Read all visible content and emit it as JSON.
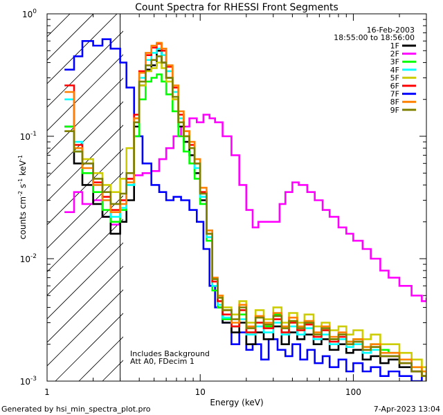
{
  "chart_data": {
    "type": "line",
    "title": "Count Spectra for RHESSI Front Segments",
    "xlabel": "Energy (keV)",
    "ylabel_parts": {
      "base": "counts cm",
      "exp1": "-2",
      "mid1": " s",
      "exp2": "-1",
      "mid2": " keV",
      "exp3": "-1"
    },
    "x_scale": "log",
    "y_scale": "log",
    "xlim": [
      1,
      300
    ],
    "ylim": [
      0.001,
      1
    ],
    "x_ticks": [
      {
        "value": 1,
        "label": "1"
      },
      {
        "value": 10,
        "label": "10"
      },
      {
        "value": 100,
        "label": "100"
      }
    ],
    "y_ticks": [
      {
        "value": 0.001,
        "base": "10",
        "exp": "-3"
      },
      {
        "value": 0.01,
        "base": "10",
        "exp": "-2"
      },
      {
        "value": 0.1,
        "base": "10",
        "exp": "-1"
      },
      {
        "value": 1,
        "base": "10",
        "exp": "0"
      }
    ],
    "attenuator_shade_upper_kev": 3,
    "annotations": {
      "date": "16-Feb-2003",
      "time_range": "18:55:00 to 18:56:00",
      "background_note": "Includes Background",
      "att_note": "Att A0, FDecim 1"
    },
    "footer_left": "Generated by hsi_min_spectra_plot.pro",
    "footer_right": "7-Apr-2023 13:04",
    "legend_position": "top-right",
    "legend": [
      {
        "name": "1F",
        "color": "#000000"
      },
      {
        "name": "2F",
        "color": "#ff00ff"
      },
      {
        "name": "3F",
        "color": "#00ff00"
      },
      {
        "name": "4F",
        "color": "#00ffff"
      },
      {
        "name": "5F",
        "color": "#cccc00"
      },
      {
        "name": "6F",
        "color": "#ff0000"
      },
      {
        "name": "7F",
        "color": "#0000ff"
      },
      {
        "name": "8F",
        "color": "#ff8000"
      },
      {
        "name": "9F",
        "color": "#808000"
      }
    ],
    "series": [
      {
        "name": "2F",
        "color": "#ff00ff",
        "x": [
          1.3,
          1.5,
          1.7,
          2.0,
          2.3,
          2.6,
          3.0,
          3.3,
          3.7,
          4.2,
          4.8,
          5.4,
          6.0,
          6.7,
          7.5,
          8.5,
          9.5,
          10.5,
          11.5,
          12.5,
          14,
          16,
          18,
          20,
          22,
          24,
          27,
          30,
          33,
          36,
          40,
          44,
          50,
          56,
          63,
          70,
          80,
          90,
          100,
          115,
          130,
          150,
          170,
          200,
          240,
          280,
          300
        ],
        "y": [
          0.024,
          0.035,
          0.028,
          0.03,
          0.022,
          0.019,
          0.03,
          0.045,
          0.048,
          0.05,
          0.052,
          0.065,
          0.08,
          0.1,
          0.12,
          0.14,
          0.13,
          0.15,
          0.14,
          0.13,
          0.1,
          0.07,
          0.04,
          0.025,
          0.018,
          0.02,
          0.02,
          0.02,
          0.028,
          0.035,
          0.042,
          0.04,
          0.035,
          0.03,
          0.025,
          0.022,
          0.018,
          0.016,
          0.014,
          0.012,
          0.01,
          0.008,
          0.007,
          0.006,
          0.005,
          0.0045,
          0.0048
        ]
      },
      {
        "name": "7F",
        "color": "#0000ff",
        "x": [
          1.3,
          1.5,
          1.7,
          2.0,
          2.3,
          2.6,
          3.0,
          3.3,
          3.7,
          4.2,
          4.8,
          5.4,
          6.0,
          6.7,
          7.5,
          8.5,
          9.5,
          10.5,
          11.5,
          12.5,
          14,
          16,
          18,
          20,
          22,
          25,
          28,
          32,
          36,
          40,
          45,
          50,
          56,
          63,
          70,
          80,
          90,
          100,
          115,
          130,
          150,
          170,
          200,
          240,
          280,
          300
        ],
        "y": [
          0.35,
          0.45,
          0.6,
          0.55,
          0.62,
          0.52,
          0.4,
          0.25,
          0.1,
          0.06,
          0.04,
          0.035,
          0.03,
          0.032,
          0.03,
          0.025,
          0.02,
          0.012,
          0.006,
          0.004,
          0.003,
          0.002,
          0.0025,
          0.0018,
          0.002,
          0.0015,
          0.0022,
          0.0018,
          0.0016,
          0.002,
          0.0015,
          0.0018,
          0.0014,
          0.0016,
          0.0013,
          0.0015,
          0.0012,
          0.0014,
          0.0012,
          0.0013,
          0.0011,
          0.0012,
          0.0011,
          0.001,
          0.0011,
          0.001
        ]
      },
      {
        "name": "1F",
        "color": "#000000",
        "x": [
          1.3,
          1.5,
          1.7,
          2.0,
          2.3,
          2.6,
          3.0,
          3.3,
          3.7,
          4.0,
          4.4,
          4.8,
          5.2,
          5.6,
          6.0,
          6.6,
          7.2,
          7.8,
          8.5,
          9.2,
          10,
          11,
          12,
          13,
          14,
          16,
          18,
          20,
          23,
          26,
          30,
          34,
          38,
          43,
          48,
          55,
          62,
          70,
          80,
          90,
          100,
          115,
          130,
          150,
          170,
          200,
          240,
          280,
          300
        ],
        "y": [
          0.12,
          0.06,
          0.04,
          0.028,
          0.022,
          0.016,
          0.02,
          0.03,
          0.12,
          0.26,
          0.35,
          0.38,
          0.5,
          0.4,
          0.3,
          0.2,
          0.12,
          0.09,
          0.07,
          0.05,
          0.03,
          0.015,
          0.006,
          0.004,
          0.003,
          0.0025,
          0.003,
          0.002,
          0.0025,
          0.0022,
          0.0028,
          0.002,
          0.0025,
          0.0022,
          0.0024,
          0.002,
          0.0022,
          0.0018,
          0.002,
          0.0017,
          0.0018,
          0.0015,
          0.0016,
          0.0014,
          0.0015,
          0.0013,
          0.0012,
          0.0011,
          0.001
        ]
      },
      {
        "name": "3F",
        "color": "#00ff00",
        "x": [
          1.3,
          1.5,
          1.7,
          2.0,
          2.3,
          2.6,
          3.0,
          3.3,
          3.7,
          4.0,
          4.4,
          4.8,
          5.2,
          5.6,
          6.0,
          6.6,
          7.2,
          7.8,
          8.5,
          9.2,
          10,
          11,
          12,
          13,
          14,
          16,
          18,
          20,
          23,
          26,
          30,
          34,
          38,
          43,
          48,
          55,
          62,
          70,
          80,
          90,
          100,
          115,
          130,
          150,
          170,
          200,
          240,
          280,
          300
        ],
        "y": [
          0.12,
          0.075,
          0.05,
          0.035,
          0.025,
          0.02,
          0.025,
          0.04,
          0.1,
          0.2,
          0.28,
          0.3,
          0.32,
          0.28,
          0.22,
          0.16,
          0.1,
          0.075,
          0.06,
          0.045,
          0.028,
          0.014,
          0.0055,
          0.004,
          0.0032,
          0.0028,
          0.0035,
          0.0025,
          0.003,
          0.0028,
          0.0035,
          0.0025,
          0.003,
          0.0026,
          0.003,
          0.0024,
          0.0026,
          0.0022,
          0.0024,
          0.0021,
          0.0022,
          0.0019,
          0.002,
          0.0018,
          0.0017,
          0.0015,
          0.0013,
          0.0012,
          0.0011
        ]
      },
      {
        "name": "4F",
        "color": "#00ffff",
        "x": [
          1.3,
          1.5,
          1.7,
          2.0,
          2.3,
          2.6,
          3.0,
          3.3,
          3.7,
          4.0,
          4.4,
          4.8,
          5.2,
          5.6,
          6.0,
          6.6,
          7.2,
          7.8,
          8.5,
          9.2,
          10,
          11,
          12,
          13,
          14,
          16,
          18,
          20,
          23,
          26,
          30,
          34,
          38,
          43,
          48,
          55,
          62,
          70,
          80,
          90,
          100,
          115,
          130,
          150,
          170,
          200,
          240,
          280,
          300
        ],
        "y": [
          0.2,
          0.09,
          0.06,
          0.04,
          0.03,
          0.022,
          0.026,
          0.04,
          0.13,
          0.3,
          0.42,
          0.48,
          0.52,
          0.46,
          0.34,
          0.23,
          0.14,
          0.1,
          0.08,
          0.055,
          0.032,
          0.015,
          0.006,
          0.0042,
          0.0033,
          0.0028,
          0.0032,
          0.0024,
          0.0028,
          0.0025,
          0.003,
          0.0024,
          0.0028,
          0.0024,
          0.0027,
          0.0022,
          0.0024,
          0.002,
          0.0022,
          0.0019,
          0.002,
          0.0017,
          0.0018,
          0.0016,
          0.0016,
          0.0014,
          0.0012,
          0.0011,
          0.001
        ]
      },
      {
        "name": "5F",
        "color": "#cccc00",
        "x": [
          1.3,
          1.5,
          1.7,
          2.0,
          2.3,
          2.6,
          3.0,
          3.3,
          3.7,
          4.0,
          4.4,
          4.8,
          5.2,
          5.6,
          6.0,
          6.6,
          7.2,
          7.8,
          8.5,
          9.2,
          10,
          11,
          12,
          13,
          14,
          16,
          18,
          20,
          23,
          26,
          30,
          34,
          38,
          43,
          48,
          55,
          62,
          70,
          80,
          90,
          100,
          115,
          130,
          150,
          170,
          200,
          240,
          280,
          300
        ],
        "y": [
          0.11,
          0.08,
          0.065,
          0.05,
          0.04,
          0.035,
          0.045,
          0.08,
          0.14,
          0.26,
          0.34,
          0.36,
          0.4,
          0.36,
          0.28,
          0.2,
          0.13,
          0.1,
          0.08,
          0.06,
          0.035,
          0.017,
          0.007,
          0.005,
          0.004,
          0.0035,
          0.0045,
          0.003,
          0.0038,
          0.0032,
          0.004,
          0.003,
          0.0036,
          0.003,
          0.0035,
          0.0028,
          0.003,
          0.0026,
          0.0028,
          0.0024,
          0.0026,
          0.0022,
          0.0024,
          0.002,
          0.002,
          0.0017,
          0.0015,
          0.0013,
          0.0012
        ]
      },
      {
        "name": "6F",
        "color": "#ff0000",
        "x": [
          1.3,
          1.5,
          1.7,
          2.0,
          2.3,
          2.6,
          3.0,
          3.3,
          3.7,
          4.0,
          4.4,
          4.8,
          5.2,
          5.6,
          6.0,
          6.6,
          7.2,
          7.8,
          8.5,
          9.2,
          10,
          11,
          12,
          13,
          14,
          16,
          18,
          20,
          23,
          26,
          30,
          34,
          38,
          43,
          48,
          55,
          62,
          70,
          80,
          90,
          100,
          115,
          130,
          150,
          170,
          200,
          240,
          280,
          300
        ],
        "y": [
          0.26,
          0.085,
          0.06,
          0.042,
          0.032,
          0.025,
          0.03,
          0.045,
          0.15,
          0.34,
          0.46,
          0.53,
          0.57,
          0.5,
          0.37,
          0.25,
          0.15,
          0.11,
          0.085,
          0.06,
          0.035,
          0.016,
          0.0065,
          0.0045,
          0.0035,
          0.0028,
          0.0038,
          0.0025,
          0.003,
          0.0027,
          0.0032,
          0.0025,
          0.003,
          0.0026,
          0.0029,
          0.0023,
          0.0026,
          0.0021,
          0.0023,
          0.002,
          0.0021,
          0.0018,
          0.0019,
          0.0016,
          0.0016,
          0.0014,
          0.0012,
          0.0011,
          0.001
        ]
      },
      {
        "name": "8F",
        "color": "#ff8000",
        "x": [
          1.3,
          1.5,
          1.7,
          2.0,
          2.3,
          2.6,
          3.0,
          3.3,
          3.7,
          4.0,
          4.4,
          4.8,
          5.2,
          5.6,
          6.0,
          6.6,
          7.2,
          7.8,
          8.5,
          9.2,
          10,
          11,
          12,
          13,
          14,
          16,
          18,
          20,
          23,
          26,
          30,
          34,
          38,
          43,
          48,
          55,
          62,
          70,
          80,
          90,
          100,
          115,
          130,
          150,
          170,
          200,
          240,
          280,
          300
        ],
        "y": [
          0.23,
          0.08,
          0.055,
          0.04,
          0.03,
          0.024,
          0.028,
          0.042,
          0.14,
          0.33,
          0.48,
          0.55,
          0.58,
          0.52,
          0.38,
          0.26,
          0.16,
          0.11,
          0.09,
          0.065,
          0.038,
          0.017,
          0.007,
          0.005,
          0.0038,
          0.003,
          0.0042,
          0.0028,
          0.0034,
          0.003,
          0.0036,
          0.0028,
          0.0033,
          0.0028,
          0.0031,
          0.0025,
          0.0028,
          0.0023,
          0.0025,
          0.0021,
          0.0022,
          0.0019,
          0.002,
          0.0017,
          0.0017,
          0.0015,
          0.0013,
          0.0012,
          0.0011
        ]
      },
      {
        "name": "9F",
        "color": "#808000",
        "x": [
          1.3,
          1.5,
          1.7,
          2.0,
          2.3,
          2.6,
          3.0,
          3.3,
          3.7,
          4.0,
          4.4,
          4.8,
          5.2,
          5.6,
          6.0,
          6.6,
          7.2,
          7.8,
          8.5,
          9.2,
          10,
          11,
          12,
          13,
          14,
          16,
          18,
          20,
          23,
          26,
          30,
          34,
          38,
          43,
          48,
          55,
          62,
          70,
          80,
          90,
          100,
          115,
          130,
          150,
          170,
          200,
          240,
          280,
          300
        ],
        "y": [
          0.11,
          0.075,
          0.06,
          0.045,
          0.035,
          0.028,
          0.034,
          0.05,
          0.13,
          0.28,
          0.38,
          0.42,
          0.45,
          0.4,
          0.3,
          0.21,
          0.13,
          0.1,
          0.08,
          0.06,
          0.034,
          0.016,
          0.0068,
          0.0048,
          0.0038,
          0.0032,
          0.004,
          0.0027,
          0.0033,
          0.0029,
          0.0034,
          0.0027,
          0.0031,
          0.0027,
          0.003,
          0.0024,
          0.0027,
          0.0022,
          0.0024,
          0.002,
          0.0021,
          0.0018,
          0.0019,
          0.0016,
          0.0016,
          0.0014,
          0.0012,
          0.0011,
          0.001
        ]
      }
    ]
  }
}
